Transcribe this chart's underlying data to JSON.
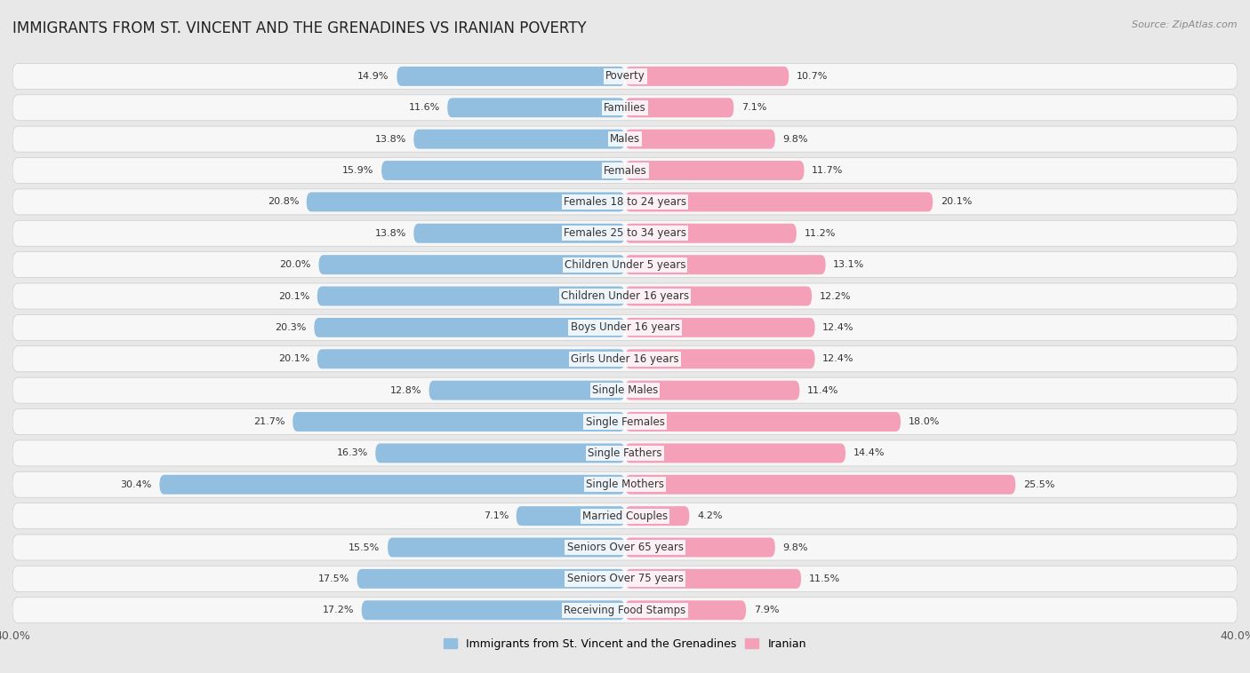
{
  "title": "IMMIGRANTS FROM ST. VINCENT AND THE GRENADINES VS IRANIAN POVERTY",
  "source": "Source: ZipAtlas.com",
  "categories": [
    "Poverty",
    "Families",
    "Males",
    "Females",
    "Females 18 to 24 years",
    "Females 25 to 34 years",
    "Children Under 5 years",
    "Children Under 16 years",
    "Boys Under 16 years",
    "Girls Under 16 years",
    "Single Males",
    "Single Females",
    "Single Fathers",
    "Single Mothers",
    "Married Couples",
    "Seniors Over 65 years",
    "Seniors Over 75 years",
    "Receiving Food Stamps"
  ],
  "left_values": [
    14.9,
    11.6,
    13.8,
    15.9,
    20.8,
    13.8,
    20.0,
    20.1,
    20.3,
    20.1,
    12.8,
    21.7,
    16.3,
    30.4,
    7.1,
    15.5,
    17.5,
    17.2
  ],
  "right_values": [
    10.7,
    7.1,
    9.8,
    11.7,
    20.1,
    11.2,
    13.1,
    12.2,
    12.4,
    12.4,
    11.4,
    18.0,
    14.4,
    25.5,
    4.2,
    9.8,
    11.5,
    7.9
  ],
  "left_color": "#92bfe0",
  "right_color": "#f4a0b8",
  "background_color": "#e8e8e8",
  "bar_background": "#f7f7f7",
  "xlim": 40.0,
  "legend_left": "Immigrants from St. Vincent and the Grenadines",
  "legend_right": "Iranian",
  "title_fontsize": 12,
  "label_fontsize": 8.5,
  "value_fontsize": 8.0
}
